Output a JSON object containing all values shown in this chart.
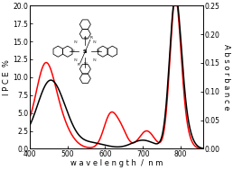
{
  "xlim": [
    400,
    860
  ],
  "ylim_left": [
    0,
    20.0
  ],
  "ylim_right": [
    0,
    0.25
  ],
  "yticks_left": [
    0.0,
    2.5,
    5.0,
    7.5,
    10.0,
    12.5,
    15.0,
    17.5,
    20.0
  ],
  "yticks_right": [
    0.0,
    0.05,
    0.1,
    0.15,
    0.2,
    0.25
  ],
  "xticks": [
    400,
    500,
    600,
    700,
    800
  ],
  "xlabel": "w a v e l e n g t h  /  n m",
  "ylabel_left": "I P C E  %",
  "ylabel_right": "A b s o r b a n c e",
  "background_color": "#ffffff",
  "line_black_color": "#000000",
  "line_red_color": "#ff0000",
  "axis_fontsize": 6.0,
  "tick_fontsize": 5.5,
  "linewidth": 1.1
}
